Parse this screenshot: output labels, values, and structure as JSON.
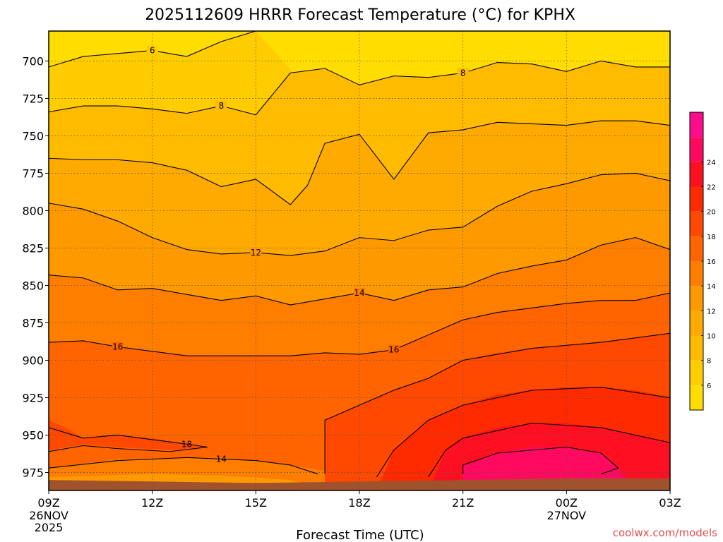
{
  "chart_data": {
    "type": "heatmap",
    "title": "2025112609 HRRR Forecast Temperature (°C) for KPHX",
    "xlabel": "Forecast Time (UTC)",
    "ylabel": "",
    "x_hours_after_09Z": [
      0,
      3,
      6,
      9,
      12,
      15,
      18
    ],
    "x_ticks": [
      {
        "label": "09Z",
        "sub": [
          "26NOV",
          "2025"
        ]
      },
      {
        "label": "12Z",
        "sub": []
      },
      {
        "label": "15Z",
        "sub": []
      },
      {
        "label": "18Z",
        "sub": []
      },
      {
        "label": "21Z",
        "sub": []
      },
      {
        "label": "00Z",
        "sub": [
          "27NOV"
        ]
      },
      {
        "label": "03Z",
        "sub": []
      }
    ],
    "y_ticks": [
      700,
      725,
      750,
      775,
      800,
      825,
      850,
      875,
      900,
      925,
      950,
      975
    ],
    "y_tick_labels": [
      "700",
      "725",
      "750",
      "775",
      "800",
      "825",
      "850",
      "875",
      "900",
      "925",
      "950",
      "975"
    ],
    "ylim": [
      680,
      987
    ],
    "colorbar": {
      "levels": [
        4,
        6,
        8,
        10,
        12,
        14,
        16,
        18,
        20,
        22,
        24,
        26
      ],
      "tick_labels": [
        "6",
        "8",
        "10",
        "12",
        "14",
        "16",
        "18",
        "20",
        "22",
        "24"
      ],
      "colors": [
        "#ffdd00",
        "#ffcc00",
        "#ffbb00",
        "#ffaa00",
        "#ff9900",
        "#ff7e00",
        "#ff6400",
        "#ff4800",
        "#ff2a00",
        "#ff0f22",
        "#ff0a5e",
        "#ff0c8c"
      ]
    },
    "contours": [
      {
        "level": 6,
        "points": [
          [
            0,
            704
          ],
          [
            1,
            697
          ],
          [
            2,
            695
          ],
          [
            3,
            693
          ],
          [
            4,
            697
          ],
          [
            5,
            687
          ],
          [
            6,
            680
          ]
        ]
      },
      {
        "level": 8,
        "points": [
          [
            0,
            734
          ],
          [
            1,
            730
          ],
          [
            2,
            730
          ],
          [
            3,
            732
          ],
          [
            4,
            735
          ],
          [
            5,
            730
          ],
          [
            6,
            736
          ],
          [
            6.5,
            722
          ],
          [
            7,
            708
          ],
          [
            8,
            705
          ],
          [
            9,
            716
          ],
          [
            10,
            710
          ],
          [
            11,
            711
          ],
          [
            12,
            708
          ],
          [
            13,
            701
          ],
          [
            14,
            702
          ],
          [
            15,
            707
          ],
          [
            16,
            700
          ],
          [
            17,
            704
          ],
          [
            18,
            704
          ]
        ]
      },
      {
        "level": 10,
        "points": [
          [
            0,
            765
          ],
          [
            1,
            766
          ],
          [
            2,
            766
          ],
          [
            3,
            768
          ],
          [
            4,
            773
          ],
          [
            5,
            784
          ],
          [
            6,
            779
          ],
          [
            7,
            796
          ],
          [
            7.5,
            783
          ],
          [
            8,
            755
          ],
          [
            9,
            749
          ],
          [
            10,
            779
          ],
          [
            11,
            748
          ],
          [
            12,
            746
          ],
          [
            13,
            741
          ],
          [
            14,
            742
          ],
          [
            15,
            743
          ],
          [
            16,
            740
          ],
          [
            17,
            740
          ],
          [
            18,
            743
          ]
        ]
      },
      {
        "level": 12,
        "points": [
          [
            0,
            795
          ],
          [
            1,
            799
          ],
          [
            2,
            807
          ],
          [
            3,
            818
          ],
          [
            4,
            826
          ],
          [
            5,
            829
          ],
          [
            6,
            828
          ],
          [
            7,
            830
          ],
          [
            8,
            827
          ],
          [
            9,
            818
          ],
          [
            10,
            820
          ],
          [
            11,
            813
          ],
          [
            12,
            811
          ],
          [
            13,
            797
          ],
          [
            14,
            787
          ],
          [
            15,
            782
          ],
          [
            16,
            776
          ],
          [
            17,
            775
          ],
          [
            18,
            780
          ]
        ]
      },
      {
        "level": 14,
        "points": [
          [
            0,
            843
          ],
          [
            1,
            845
          ],
          [
            2,
            853
          ],
          [
            3,
            852
          ],
          [
            4,
            856
          ],
          [
            5,
            860
          ],
          [
            6,
            857
          ],
          [
            7,
            863
          ],
          [
            8,
            859
          ],
          [
            9,
            855
          ],
          [
            10,
            860
          ],
          [
            11,
            853
          ],
          [
            12,
            851
          ],
          [
            13,
            842
          ],
          [
            14,
            837
          ],
          [
            15,
            833
          ],
          [
            16,
            823
          ],
          [
            17,
            818
          ],
          [
            18,
            826
          ]
        ]
      },
      {
        "level": 16,
        "points": [
          [
            0,
            888
          ],
          [
            1,
            887
          ],
          [
            2,
            891
          ],
          [
            3,
            894
          ],
          [
            4,
            897
          ],
          [
            5,
            897
          ],
          [
            6,
            897
          ],
          [
            7,
            897
          ],
          [
            8,
            895
          ],
          [
            9,
            896
          ],
          [
            10,
            893
          ],
          [
            11,
            883
          ],
          [
            12,
            873
          ],
          [
            13,
            868
          ],
          [
            14,
            865
          ],
          [
            15,
            862
          ],
          [
            16,
            860
          ],
          [
            17,
            860
          ],
          [
            18,
            855
          ]
        ]
      }
    ]
  },
  "credit": "coolwx.com/models"
}
